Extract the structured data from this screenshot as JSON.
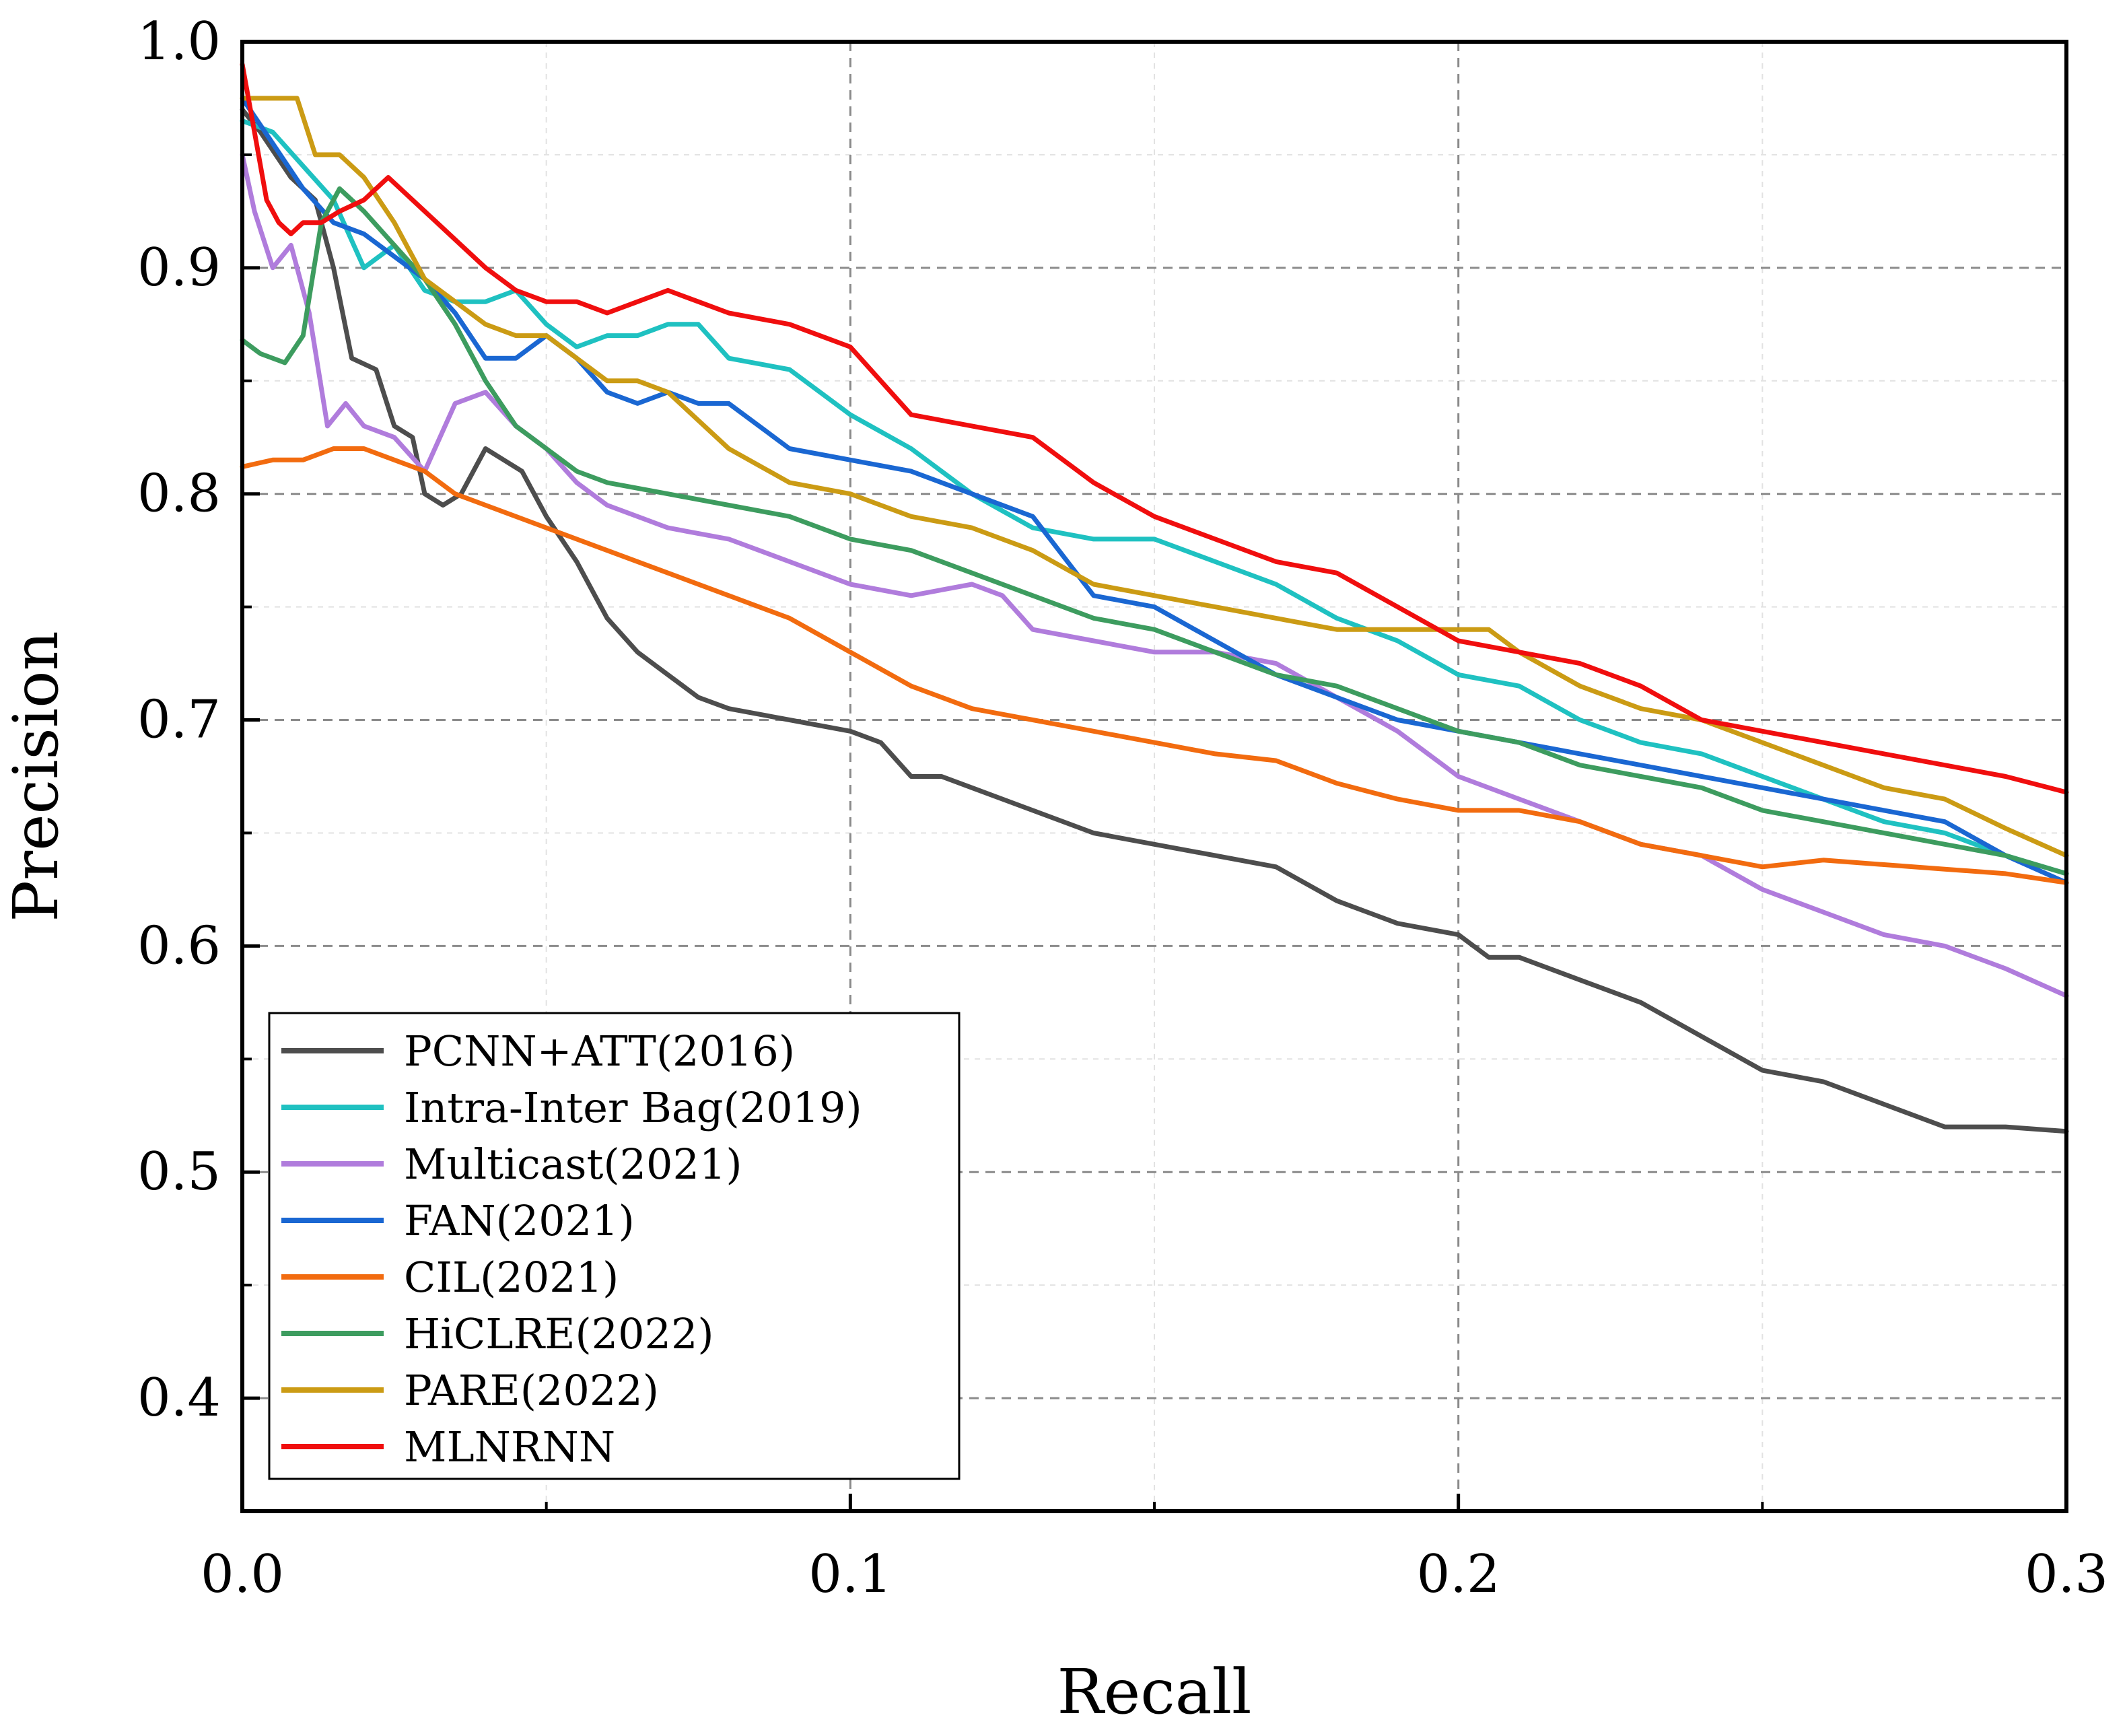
{
  "chart_data": {
    "type": "line",
    "title": "",
    "xlabel": "Recall",
    "ylabel": "Precision",
    "xlim": [
      0.0,
      0.3
    ],
    "ylim": [
      0.35,
      1.0
    ],
    "xticks": [
      "0.0",
      "0.1",
      "0.2",
      "0.3"
    ],
    "xtick_values": [
      0.0,
      0.1,
      0.2,
      0.3
    ],
    "yticks": [
      "0.4",
      "0.5",
      "0.6",
      "0.7",
      "0.8",
      "0.9",
      "1.0"
    ],
    "ytick_values": [
      0.4,
      0.5,
      0.6,
      0.7,
      0.8,
      0.9,
      1.0
    ],
    "grid": true,
    "legend_position": "bottom-left",
    "series": [
      {
        "name": "PCNN+ATT(2016)",
        "color": "#4d4d4d",
        "x": [
          0.0,
          0.003,
          0.008,
          0.012,
          0.015,
          0.018,
          0.022,
          0.025,
          0.028,
          0.03,
          0.033,
          0.036,
          0.04,
          0.043,
          0.046,
          0.05,
          0.055,
          0.06,
          0.065,
          0.07,
          0.075,
          0.08,
          0.09,
          0.1,
          0.105,
          0.11,
          0.115,
          0.12,
          0.125,
          0.13,
          0.14,
          0.15,
          0.16,
          0.17,
          0.18,
          0.19,
          0.2,
          0.205,
          0.21,
          0.22,
          0.23,
          0.24,
          0.25,
          0.26,
          0.27,
          0.28,
          0.29,
          0.3
        ],
        "y": [
          0.97,
          0.96,
          0.94,
          0.93,
          0.9,
          0.86,
          0.855,
          0.83,
          0.825,
          0.8,
          0.795,
          0.8,
          0.82,
          0.815,
          0.81,
          0.79,
          0.77,
          0.745,
          0.73,
          0.72,
          0.71,
          0.705,
          0.7,
          0.695,
          0.69,
          0.675,
          0.675,
          0.67,
          0.665,
          0.66,
          0.65,
          0.645,
          0.64,
          0.635,
          0.62,
          0.61,
          0.605,
          0.595,
          0.595,
          0.585,
          0.575,
          0.56,
          0.545,
          0.54,
          0.53,
          0.52,
          0.52,
          0.518
        ]
      },
      {
        "name": "Intra-Inter Bag(2019)",
        "color": "#1fc1c1",
        "x": [
          0.0,
          0.005,
          0.01,
          0.015,
          0.02,
          0.025,
          0.03,
          0.035,
          0.04,
          0.045,
          0.05,
          0.055,
          0.06,
          0.065,
          0.07,
          0.075,
          0.08,
          0.09,
          0.1,
          0.11,
          0.12,
          0.13,
          0.14,
          0.15,
          0.16,
          0.17,
          0.18,
          0.19,
          0.2,
          0.21,
          0.22,
          0.23,
          0.24,
          0.25,
          0.26,
          0.27,
          0.28,
          0.29,
          0.3
        ],
        "y": [
          0.965,
          0.96,
          0.945,
          0.93,
          0.9,
          0.91,
          0.89,
          0.885,
          0.885,
          0.89,
          0.875,
          0.865,
          0.87,
          0.87,
          0.875,
          0.875,
          0.86,
          0.855,
          0.835,
          0.82,
          0.8,
          0.785,
          0.78,
          0.78,
          0.77,
          0.76,
          0.745,
          0.735,
          0.72,
          0.715,
          0.7,
          0.69,
          0.685,
          0.675,
          0.665,
          0.655,
          0.65,
          0.64,
          0.632
        ]
      },
      {
        "name": "Multicast(2021)",
        "color": "#b07cdc",
        "x": [
          0.0,
          0.002,
          0.005,
          0.008,
          0.011,
          0.014,
          0.017,
          0.02,
          0.025,
          0.03,
          0.035,
          0.04,
          0.045,
          0.05,
          0.055,
          0.06,
          0.07,
          0.08,
          0.09,
          0.1,
          0.11,
          0.12,
          0.125,
          0.13,
          0.14,
          0.15,
          0.16,
          0.17,
          0.18,
          0.19,
          0.2,
          0.21,
          0.22,
          0.23,
          0.24,
          0.25,
          0.26,
          0.27,
          0.28,
          0.29,
          0.3
        ],
        "y": [
          0.95,
          0.925,
          0.9,
          0.91,
          0.88,
          0.83,
          0.84,
          0.83,
          0.825,
          0.81,
          0.84,
          0.845,
          0.83,
          0.82,
          0.805,
          0.795,
          0.785,
          0.78,
          0.77,
          0.76,
          0.755,
          0.76,
          0.755,
          0.74,
          0.735,
          0.73,
          0.73,
          0.725,
          0.71,
          0.695,
          0.675,
          0.665,
          0.655,
          0.645,
          0.64,
          0.625,
          0.615,
          0.605,
          0.6,
          0.59,
          0.578
        ]
      },
      {
        "name": "FAN(2021)",
        "color": "#1a67d2",
        "x": [
          0.0,
          0.005,
          0.01,
          0.015,
          0.02,
          0.025,
          0.03,
          0.035,
          0.04,
          0.045,
          0.05,
          0.055,
          0.06,
          0.065,
          0.07,
          0.075,
          0.08,
          0.09,
          0.1,
          0.11,
          0.12,
          0.13,
          0.14,
          0.15,
          0.16,
          0.17,
          0.18,
          0.19,
          0.2,
          0.21,
          0.22,
          0.23,
          0.24,
          0.25,
          0.26,
          0.27,
          0.28,
          0.29,
          0.3
        ],
        "y": [
          0.975,
          0.955,
          0.935,
          0.92,
          0.915,
          0.905,
          0.895,
          0.88,
          0.86,
          0.86,
          0.87,
          0.86,
          0.845,
          0.84,
          0.845,
          0.84,
          0.84,
          0.82,
          0.815,
          0.81,
          0.8,
          0.79,
          0.755,
          0.75,
          0.735,
          0.72,
          0.71,
          0.7,
          0.695,
          0.69,
          0.685,
          0.68,
          0.675,
          0.67,
          0.665,
          0.66,
          0.655,
          0.64,
          0.628
        ]
      },
      {
        "name": "CIL(2021)",
        "color": "#f26b0f",
        "x": [
          0.0,
          0.005,
          0.01,
          0.015,
          0.02,
          0.025,
          0.03,
          0.035,
          0.04,
          0.05,
          0.06,
          0.07,
          0.08,
          0.09,
          0.1,
          0.11,
          0.12,
          0.13,
          0.14,
          0.15,
          0.16,
          0.17,
          0.18,
          0.19,
          0.2,
          0.21,
          0.22,
          0.23,
          0.24,
          0.25,
          0.26,
          0.27,
          0.28,
          0.29,
          0.3
        ],
        "y": [
          0.812,
          0.815,
          0.815,
          0.82,
          0.82,
          0.815,
          0.81,
          0.8,
          0.795,
          0.785,
          0.775,
          0.765,
          0.755,
          0.745,
          0.73,
          0.715,
          0.705,
          0.7,
          0.695,
          0.69,
          0.685,
          0.682,
          0.672,
          0.665,
          0.66,
          0.66,
          0.655,
          0.645,
          0.64,
          0.635,
          0.638,
          0.636,
          0.634,
          0.632,
          0.628
        ]
      },
      {
        "name": "HiCLRE(2022)",
        "color": "#3d9c5f",
        "x": [
          0.0,
          0.003,
          0.007,
          0.01,
          0.013,
          0.016,
          0.02,
          0.025,
          0.03,
          0.035,
          0.04,
          0.045,
          0.05,
          0.055,
          0.06,
          0.07,
          0.08,
          0.09,
          0.1,
          0.11,
          0.12,
          0.13,
          0.14,
          0.15,
          0.16,
          0.17,
          0.18,
          0.19,
          0.2,
          0.21,
          0.22,
          0.23,
          0.24,
          0.25,
          0.26,
          0.27,
          0.28,
          0.29,
          0.3
        ],
        "y": [
          0.868,
          0.862,
          0.858,
          0.87,
          0.92,
          0.935,
          0.925,
          0.91,
          0.895,
          0.875,
          0.85,
          0.83,
          0.82,
          0.81,
          0.805,
          0.8,
          0.795,
          0.79,
          0.78,
          0.775,
          0.765,
          0.755,
          0.745,
          0.74,
          0.73,
          0.72,
          0.715,
          0.705,
          0.695,
          0.69,
          0.68,
          0.675,
          0.67,
          0.66,
          0.655,
          0.65,
          0.645,
          0.64,
          0.632
        ]
      },
      {
        "name": "PARE(2022)",
        "color": "#cb9b14",
        "x": [
          0.0,
          0.005,
          0.009,
          0.012,
          0.016,
          0.02,
          0.025,
          0.03,
          0.035,
          0.04,
          0.045,
          0.05,
          0.055,
          0.06,
          0.065,
          0.07,
          0.08,
          0.09,
          0.1,
          0.11,
          0.12,
          0.13,
          0.14,
          0.15,
          0.16,
          0.17,
          0.18,
          0.19,
          0.2,
          0.205,
          0.21,
          0.22,
          0.23,
          0.24,
          0.25,
          0.26,
          0.27,
          0.28,
          0.29,
          0.3
        ],
        "y": [
          0.975,
          0.975,
          0.975,
          0.95,
          0.95,
          0.94,
          0.92,
          0.895,
          0.885,
          0.875,
          0.87,
          0.87,
          0.86,
          0.85,
          0.85,
          0.845,
          0.82,
          0.805,
          0.8,
          0.79,
          0.785,
          0.775,
          0.76,
          0.755,
          0.75,
          0.745,
          0.74,
          0.74,
          0.74,
          0.74,
          0.73,
          0.715,
          0.705,
          0.7,
          0.69,
          0.68,
          0.67,
          0.665,
          0.652,
          0.64
        ]
      },
      {
        "name": "MLNRNN",
        "color": "#f00e0e",
        "x": [
          0.0,
          0.002,
          0.004,
          0.006,
          0.008,
          0.01,
          0.013,
          0.016,
          0.02,
          0.024,
          0.028,
          0.032,
          0.036,
          0.04,
          0.045,
          0.05,
          0.055,
          0.06,
          0.065,
          0.07,
          0.075,
          0.08,
          0.09,
          0.1,
          0.105,
          0.11,
          0.12,
          0.13,
          0.14,
          0.15,
          0.16,
          0.17,
          0.18,
          0.19,
          0.2,
          0.21,
          0.22,
          0.23,
          0.24,
          0.25,
          0.26,
          0.27,
          0.28,
          0.29,
          0.3
        ],
        "y": [
          0.99,
          0.96,
          0.93,
          0.92,
          0.915,
          0.92,
          0.92,
          0.925,
          0.93,
          0.94,
          0.93,
          0.92,
          0.91,
          0.9,
          0.89,
          0.885,
          0.885,
          0.88,
          0.885,
          0.89,
          0.885,
          0.88,
          0.875,
          0.865,
          0.85,
          0.835,
          0.83,
          0.825,
          0.805,
          0.79,
          0.78,
          0.77,
          0.765,
          0.75,
          0.735,
          0.73,
          0.725,
          0.715,
          0.7,
          0.695,
          0.69,
          0.685,
          0.68,
          0.675,
          0.668
        ]
      }
    ]
  }
}
